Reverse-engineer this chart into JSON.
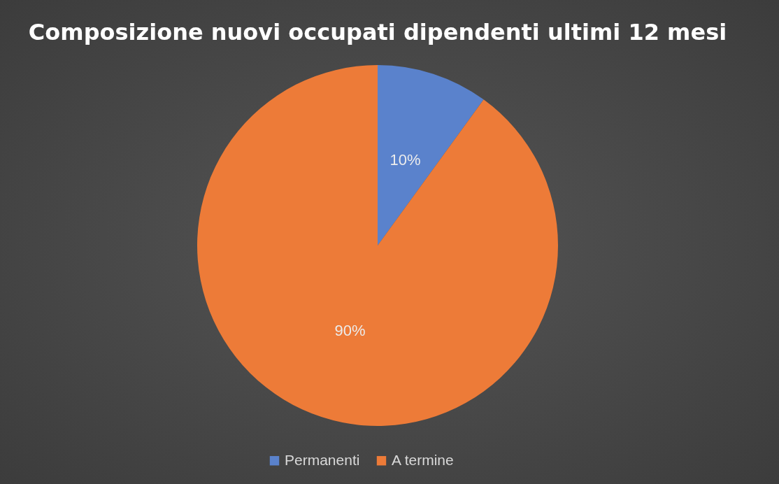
{
  "chart_data": {
    "type": "pie",
    "title": "Composizione nuovi occupati dipendenti ultimi 12 mesi",
    "categories": [
      "Permanenti",
      "A termine"
    ],
    "values": [
      10,
      90
    ],
    "colors": [
      "#5a82cc",
      "#ed7b38"
    ],
    "value_labels": [
      "10%",
      "90%"
    ],
    "legend": "bottom"
  }
}
